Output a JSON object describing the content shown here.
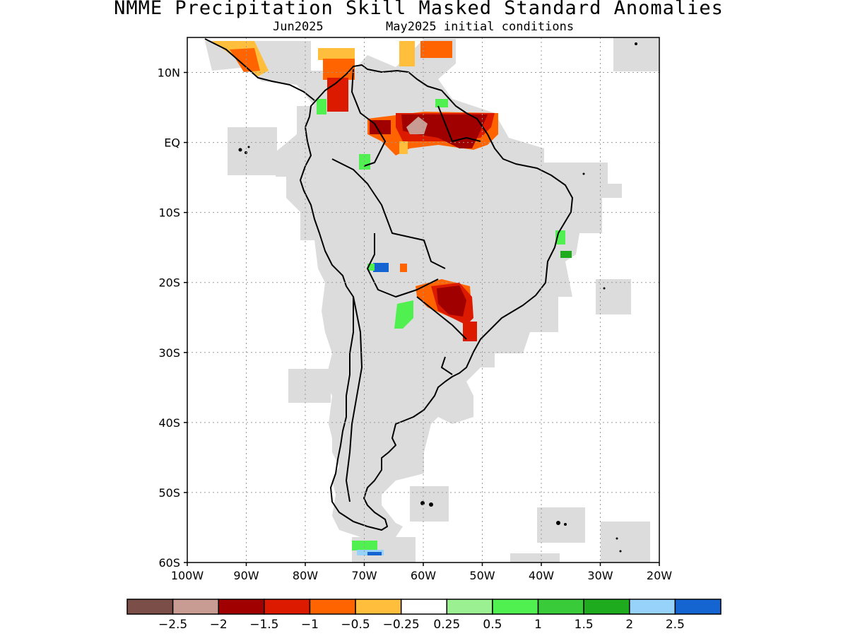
{
  "title": "NMME Precipitation Skill Masked Standard Anomalies",
  "subtitle_left": "Jun2025",
  "subtitle_right": "May2025 initial conditions",
  "map": {
    "lon_range": [
      -100,
      -20
    ],
    "lat_range": [
      -60,
      15
    ],
    "lon_ticks": [
      -100,
      -90,
      -80,
      -70,
      -60,
      -50,
      -40,
      -30,
      -20
    ],
    "lon_tick_labels": [
      "100W",
      "90W",
      "80W",
      "70W",
      "60W",
      "50W",
      "40W",
      "30W",
      "20W"
    ],
    "lat_ticks": [
      10,
      0,
      -10,
      -20,
      -30,
      -40,
      -50,
      -60
    ],
    "lat_tick_labels": [
      "10N",
      "EQ",
      "10S",
      "20S",
      "30S",
      "40S",
      "50S",
      "60S"
    ],
    "gridlines": true,
    "mask_color": "#dcdcdc"
  },
  "colorbar": {
    "colors": [
      "#7b4e47",
      "#c89b93",
      "#a00000",
      "#dc1a00",
      "#ff6400",
      "#ffbe3c",
      "#ffffff",
      "#9bf092",
      "#50f050",
      "#3acb3a",
      "#1eac1e",
      "#96d2fa",
      "#1464d2"
    ],
    "labels": [
      "−2.5",
      "−2",
      "−1.5",
      "−1",
      "−0.5",
      "−0.25",
      "0.25",
      "0.5",
      "1",
      "1.5",
      "2",
      "2.5"
    ]
  },
  "anomaly_regions": [
    {
      "name": "northern-south-america-dry",
      "level": -1.5,
      "color": "#a00000",
      "lon": [
        -72,
        -47
      ],
      "lat": [
        2,
        8
      ]
    },
    {
      "name": "venezuela-peak-dry",
      "level": -2,
      "color": "#c89b93",
      "lon": [
        -62,
        -58
      ],
      "lat": [
        4,
        6
      ]
    },
    {
      "name": "colombia-dry",
      "level": -1,
      "color": "#dc1a00",
      "lon": [
        -78,
        -72
      ],
      "lat": [
        5,
        12
      ]
    },
    {
      "name": "caribbean-dry",
      "level": -0.5,
      "color": "#ff6400",
      "lon": [
        -77,
        -70
      ],
      "lat": [
        11,
        14
      ]
    },
    {
      "name": "paraguay-dry",
      "level": -1.5,
      "color": "#a00000",
      "lon": [
        -60,
        -51
      ],
      "lat": [
        -25,
        -19
      ]
    },
    {
      "name": "bolivia-wet",
      "level": 2.5,
      "color": "#1464d2",
      "lon": [
        -69,
        -66
      ],
      "lat": [
        -18,
        -17
      ]
    },
    {
      "name": "argentina-north-wet",
      "level": 1,
      "color": "#50f050",
      "lon": [
        -65,
        -62
      ],
      "lat": [
        -25,
        -22
      ]
    },
    {
      "name": "brazil-east-wet",
      "level": 1,
      "color": "#50f050",
      "lon": [
        -37,
        -35
      ],
      "lat": [
        -14,
        -12
      ]
    },
    {
      "name": "drake-passage-wet",
      "level": 1,
      "color": "#50f050",
      "lon": [
        -70,
        -66
      ],
      "lat": [
        -59,
        -58
      ]
    }
  ]
}
